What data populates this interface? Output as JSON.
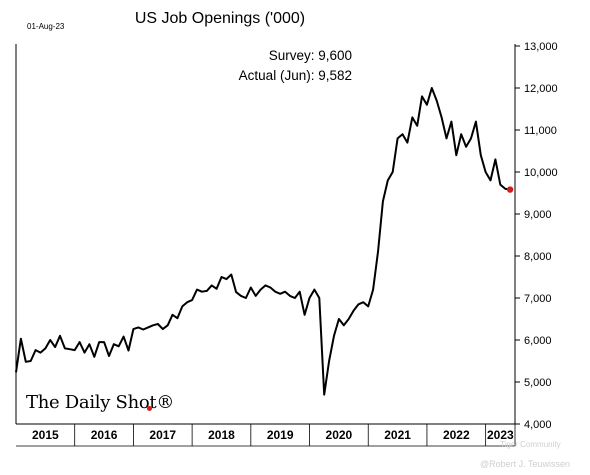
{
  "date_stamp": "01-Aug-23",
  "logo_text": "The Daily Shot®",
  "watermark": [
    "Tiger Community",
    "@Robert J. Teuwissen"
  ],
  "chart_data": {
    "type": "line",
    "title": "US Job Openings ('000)",
    "annotations": [
      "Survey:  9,600",
      "Actual (Jun):  9,582"
    ],
    "x_labels": [
      "2015",
      "2016",
      "2017",
      "2018",
      "2019",
      "2020",
      "2021",
      "2022",
      "2023"
    ],
    "y_ticks": [
      "4,000",
      "5,000",
      "6,000",
      "7,000",
      "8,000",
      "9,000",
      "10,000",
      "11,000",
      "12,000",
      "13,000"
    ],
    "ylim": [
      4000,
      13000
    ],
    "xlim": [
      "2015-01",
      "2023-07"
    ],
    "series": [
      {
        "color": "#000000",
        "dates": [
          "2015-01",
          "2015-02",
          "2015-03",
          "2015-04",
          "2015-05",
          "2015-06",
          "2015-07",
          "2015-08",
          "2015-09",
          "2015-10",
          "2015-11",
          "2015-12",
          "2016-01",
          "2016-02",
          "2016-03",
          "2016-04",
          "2016-05",
          "2016-06",
          "2016-07",
          "2016-08",
          "2016-09",
          "2016-10",
          "2016-11",
          "2016-12",
          "2017-01",
          "2017-02",
          "2017-03",
          "2017-04",
          "2017-05",
          "2017-06",
          "2017-07",
          "2017-08",
          "2017-09",
          "2017-10",
          "2017-11",
          "2017-12",
          "2018-01",
          "2018-02",
          "2018-03",
          "2018-04",
          "2018-05",
          "2018-06",
          "2018-07",
          "2018-08",
          "2018-09",
          "2018-10",
          "2018-11",
          "2018-12",
          "2019-01",
          "2019-02",
          "2019-03",
          "2019-04",
          "2019-05",
          "2019-06",
          "2019-07",
          "2019-08",
          "2019-09",
          "2019-10",
          "2019-11",
          "2019-12",
          "2020-01",
          "2020-02",
          "2020-03",
          "2020-04",
          "2020-05",
          "2020-06",
          "2020-07",
          "2020-08",
          "2020-09",
          "2020-10",
          "2020-11",
          "2020-12",
          "2021-01",
          "2021-02",
          "2021-03",
          "2021-04",
          "2021-05",
          "2021-06",
          "2021-07",
          "2021-08",
          "2021-09",
          "2021-10",
          "2021-11",
          "2021-12",
          "2022-01",
          "2022-02",
          "2022-03",
          "2022-04",
          "2022-05",
          "2022-06",
          "2022-07",
          "2022-08",
          "2022-09",
          "2022-10",
          "2022-11",
          "2022-12",
          "2023-01",
          "2023-02",
          "2023-03",
          "2023-04",
          "2023-05",
          "2023-06"
        ],
        "values": [
          5230,
          6030,
          5480,
          5500,
          5760,
          5700,
          5800,
          6000,
          5830,
          6100,
          5800,
          5780,
          5760,
          5950,
          5700,
          5900,
          5600,
          5950,
          5950,
          5620,
          5900,
          5850,
          6080,
          5750,
          6260,
          6300,
          6250,
          6300,
          6350,
          6380,
          6260,
          6350,
          6600,
          6520,
          6800,
          6900,
          6950,
          7200,
          7150,
          7170,
          7300,
          7220,
          7500,
          7450,
          7560,
          7140,
          7050,
          7000,
          7250,
          7050,
          7200,
          7300,
          7250,
          7150,
          7100,
          7150,
          7050,
          7000,
          7150,
          6600,
          7000,
          7200,
          7000,
          4700,
          5500,
          6100,
          6500,
          6350,
          6500,
          6700,
          6850,
          6900,
          6800,
          7200,
          8100,
          9300,
          9800,
          10000,
          10800,
          10900,
          10700,
          11300,
          11100,
          11800,
          11600,
          12000,
          11700,
          11300,
          10800,
          11200,
          10400,
          10900,
          10600,
          10800,
          11200,
          10400,
          10000,
          9800,
          10300,
          9700,
          9600,
          9582
        ]
      }
    ],
    "highlight": {
      "date": "2023-06",
      "value": 9582,
      "color": "#d21b1b"
    },
    "grid": false
  }
}
